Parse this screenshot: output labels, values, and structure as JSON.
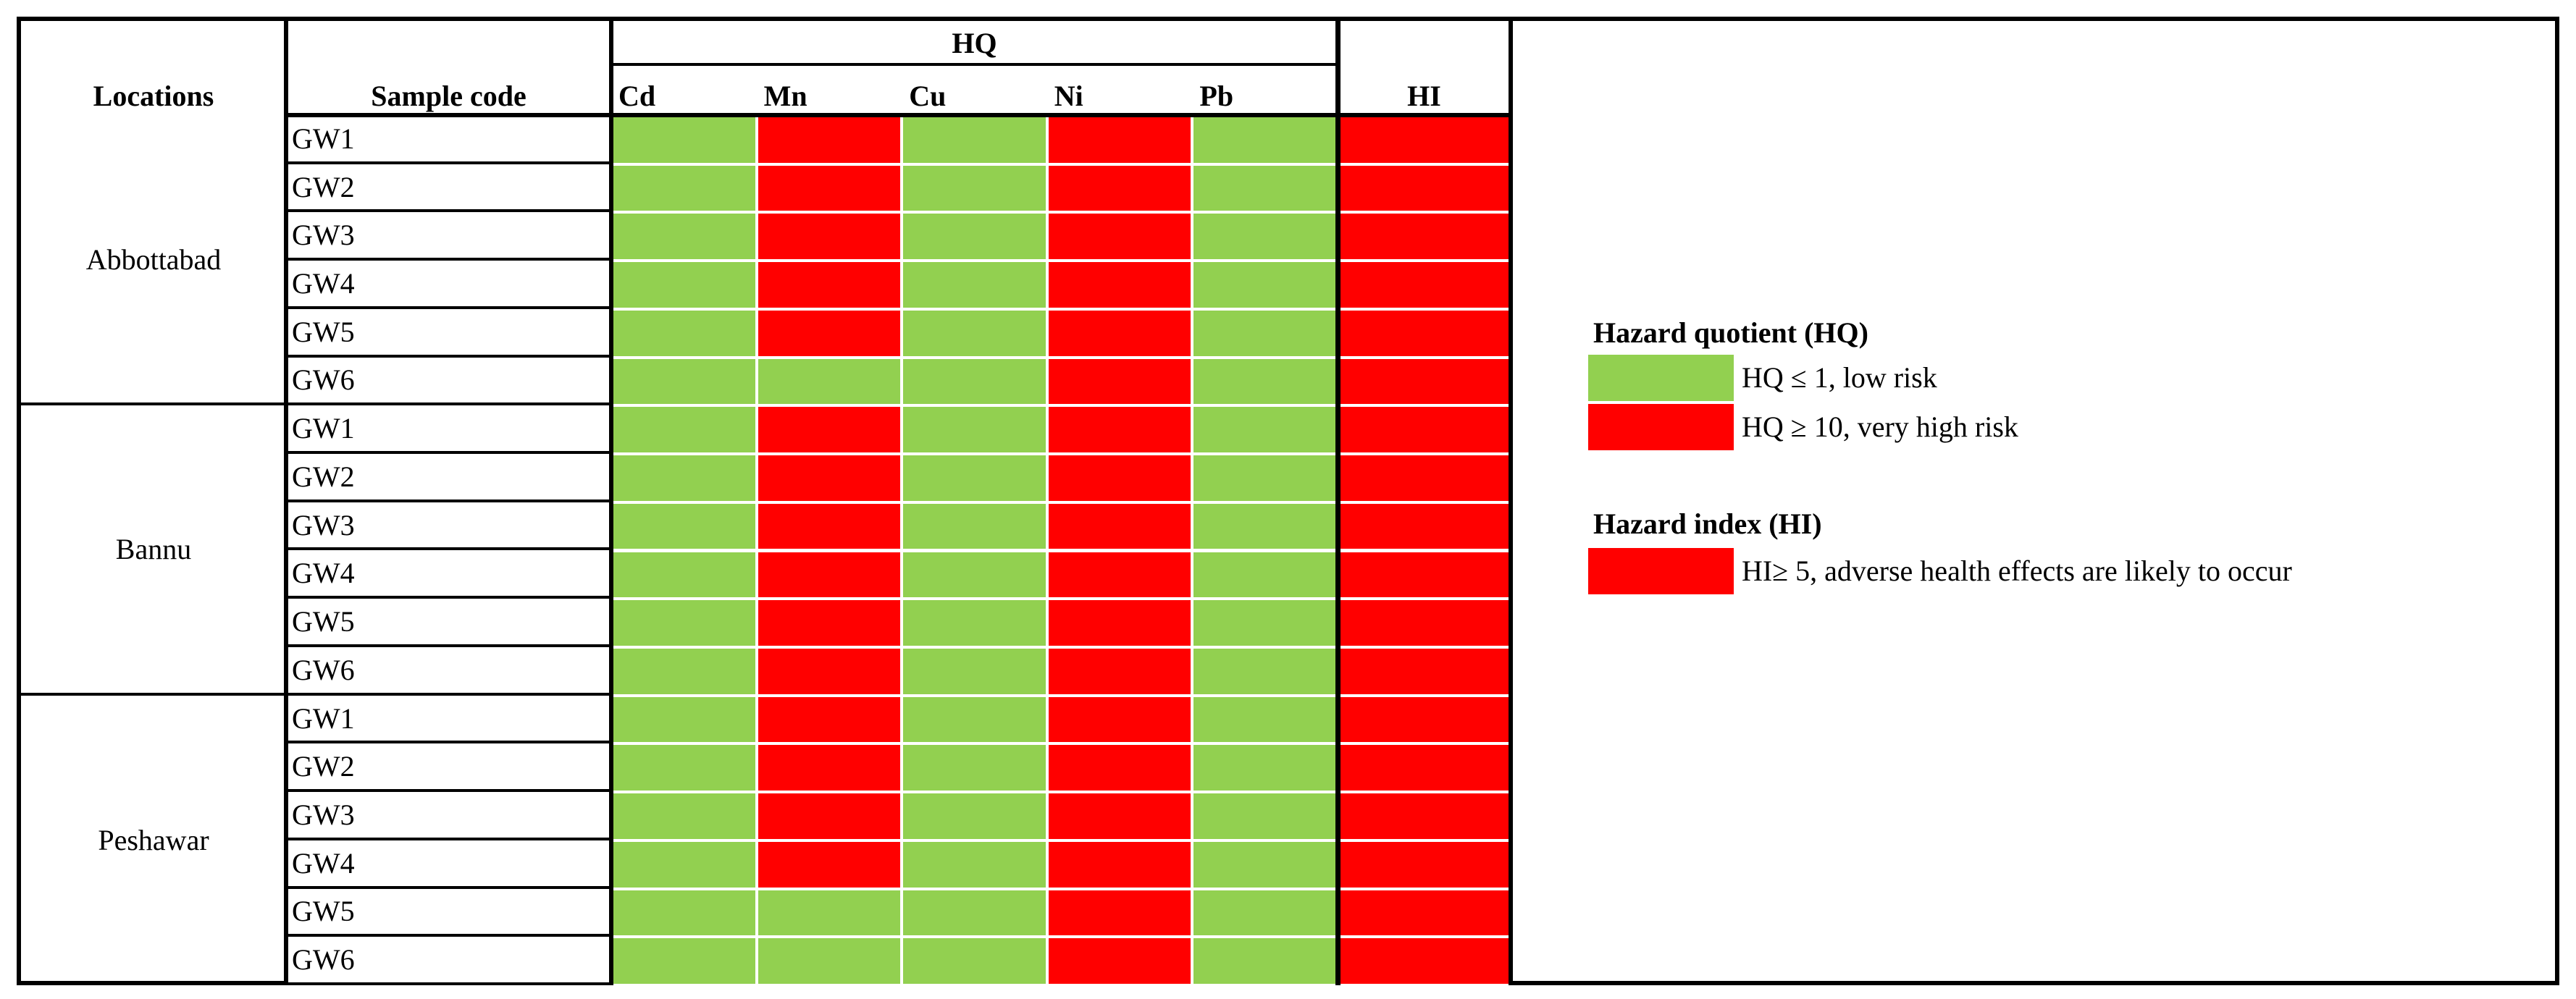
{
  "headers": {
    "locations": "Locations",
    "sample_code": "Sample code",
    "hq": "HQ",
    "hi": "HI",
    "metals": [
      "Cd",
      "Mn",
      "Cu",
      "Ni",
      "Pb"
    ]
  },
  "colors": {
    "low": "#92D050",
    "high": "#FF0000"
  },
  "groups": [
    {
      "location": "Abbottabad",
      "samples": [
        {
          "code": "GW1",
          "hq": [
            "low",
            "high",
            "low",
            "high",
            "low"
          ],
          "hi": "high"
        },
        {
          "code": "GW2",
          "hq": [
            "low",
            "high",
            "low",
            "high",
            "low"
          ],
          "hi": "high"
        },
        {
          "code": "GW3",
          "hq": [
            "low",
            "high",
            "low",
            "high",
            "low"
          ],
          "hi": "high"
        },
        {
          "code": "GW4",
          "hq": [
            "low",
            "high",
            "low",
            "high",
            "low"
          ],
          "hi": "high"
        },
        {
          "code": "GW5",
          "hq": [
            "low",
            "high",
            "low",
            "high",
            "low"
          ],
          "hi": "high"
        },
        {
          "code": "GW6",
          "hq": [
            "low",
            "low",
            "low",
            "high",
            "low"
          ],
          "hi": "high"
        }
      ]
    },
    {
      "location": "Bannu",
      "samples": [
        {
          "code": "GW1",
          "hq": [
            "low",
            "high",
            "low",
            "high",
            "low"
          ],
          "hi": "high"
        },
        {
          "code": "GW2",
          "hq": [
            "low",
            "high",
            "low",
            "high",
            "low"
          ],
          "hi": "high"
        },
        {
          "code": "GW3",
          "hq": [
            "low",
            "high",
            "low",
            "high",
            "low"
          ],
          "hi": "high"
        },
        {
          "code": "GW4",
          "hq": [
            "low",
            "high",
            "low",
            "high",
            "low"
          ],
          "hi": "high"
        },
        {
          "code": "GW5",
          "hq": [
            "low",
            "high",
            "low",
            "high",
            "low"
          ],
          "hi": "high"
        },
        {
          "code": "GW6",
          "hq": [
            "low",
            "high",
            "low",
            "high",
            "low"
          ],
          "hi": "high"
        }
      ]
    },
    {
      "location": "Peshawar",
      "samples": [
        {
          "code": "GW1",
          "hq": [
            "low",
            "high",
            "low",
            "high",
            "low"
          ],
          "hi": "high"
        },
        {
          "code": "GW2",
          "hq": [
            "low",
            "high",
            "low",
            "high",
            "low"
          ],
          "hi": "high"
        },
        {
          "code": "GW3",
          "hq": [
            "low",
            "high",
            "low",
            "high",
            "low"
          ],
          "hi": "high"
        },
        {
          "code": "GW4",
          "hq": [
            "low",
            "high",
            "low",
            "high",
            "low"
          ],
          "hi": "high"
        },
        {
          "code": "GW5",
          "hq": [
            "low",
            "low",
            "low",
            "high",
            "low"
          ],
          "hi": "high"
        },
        {
          "code": "GW6",
          "hq": [
            "low",
            "low",
            "low",
            "high",
            "low"
          ],
          "hi": "high"
        }
      ]
    }
  ],
  "legend": {
    "hq_title": "Hazard quotient (HQ)",
    "hq_low": "HQ ≤ 1, low risk",
    "hq_high": "HQ ≥ 10, very high risk",
    "hi_title": "Hazard index (HI)",
    "hi_high": "HI≥ 5, adverse health effects are likely to occur"
  }
}
